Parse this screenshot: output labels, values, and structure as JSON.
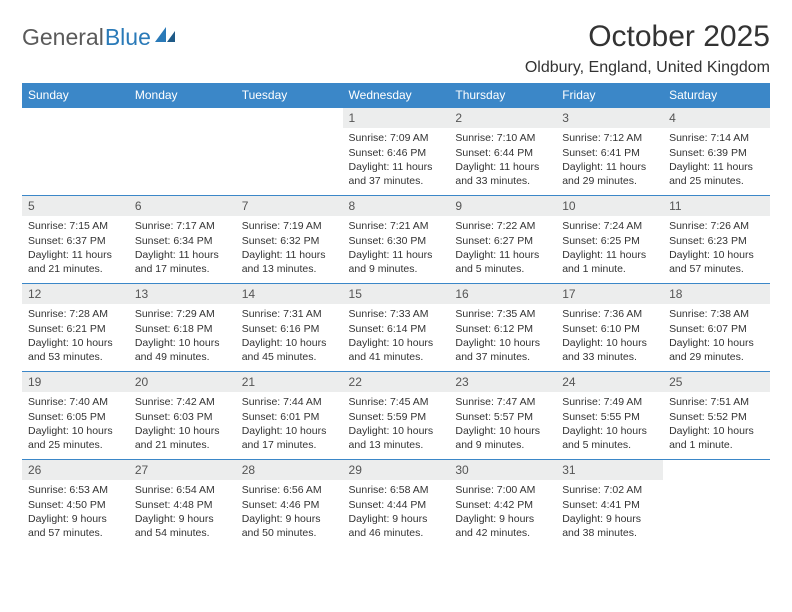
{
  "colors": {
    "header_bg": "#3b87c8",
    "header_text": "#ffffff",
    "daynum_bg": "#eceded",
    "daynum_text": "#555555",
    "body_text": "#333333",
    "week_border": "#3b87c8",
    "logo_gray": "#5a5a5a",
    "logo_blue": "#2a7ab8",
    "page_bg": "#ffffff"
  },
  "typography": {
    "month_title_fontsize": 30,
    "location_fontsize": 16,
    "weekday_fontsize": 12,
    "daynum_fontsize": 12,
    "details_fontsize": 10.5,
    "logo_fontsize": 23,
    "font_family": "Arial, Helvetica, sans-serif"
  },
  "logo": {
    "part1": "General",
    "part2": "Blue"
  },
  "title": "October 2025",
  "location": "Oldbury, England, United Kingdom",
  "weekdays": [
    "Sunday",
    "Monday",
    "Tuesday",
    "Wednesday",
    "Thursday",
    "Friday",
    "Saturday"
  ],
  "weeks": [
    [
      {
        "empty": true
      },
      {
        "empty": true
      },
      {
        "empty": true
      },
      {
        "n": "1",
        "sr": "7:09 AM",
        "ss": "6:46 PM",
        "dl": "11 hours and 37 minutes."
      },
      {
        "n": "2",
        "sr": "7:10 AM",
        "ss": "6:44 PM",
        "dl": "11 hours and 33 minutes."
      },
      {
        "n": "3",
        "sr": "7:12 AM",
        "ss": "6:41 PM",
        "dl": "11 hours and 29 minutes."
      },
      {
        "n": "4",
        "sr": "7:14 AM",
        "ss": "6:39 PM",
        "dl": "11 hours and 25 minutes."
      }
    ],
    [
      {
        "n": "5",
        "sr": "7:15 AM",
        "ss": "6:37 PM",
        "dl": "11 hours and 21 minutes."
      },
      {
        "n": "6",
        "sr": "7:17 AM",
        "ss": "6:34 PM",
        "dl": "11 hours and 17 minutes."
      },
      {
        "n": "7",
        "sr": "7:19 AM",
        "ss": "6:32 PM",
        "dl": "11 hours and 13 minutes."
      },
      {
        "n": "8",
        "sr": "7:21 AM",
        "ss": "6:30 PM",
        "dl": "11 hours and 9 minutes."
      },
      {
        "n": "9",
        "sr": "7:22 AM",
        "ss": "6:27 PM",
        "dl": "11 hours and 5 minutes."
      },
      {
        "n": "10",
        "sr": "7:24 AM",
        "ss": "6:25 PM",
        "dl": "11 hours and 1 minute."
      },
      {
        "n": "11",
        "sr": "7:26 AM",
        "ss": "6:23 PM",
        "dl": "10 hours and 57 minutes."
      }
    ],
    [
      {
        "n": "12",
        "sr": "7:28 AM",
        "ss": "6:21 PM",
        "dl": "10 hours and 53 minutes."
      },
      {
        "n": "13",
        "sr": "7:29 AM",
        "ss": "6:18 PM",
        "dl": "10 hours and 49 minutes."
      },
      {
        "n": "14",
        "sr": "7:31 AM",
        "ss": "6:16 PM",
        "dl": "10 hours and 45 minutes."
      },
      {
        "n": "15",
        "sr": "7:33 AM",
        "ss": "6:14 PM",
        "dl": "10 hours and 41 minutes."
      },
      {
        "n": "16",
        "sr": "7:35 AM",
        "ss": "6:12 PM",
        "dl": "10 hours and 37 minutes."
      },
      {
        "n": "17",
        "sr": "7:36 AM",
        "ss": "6:10 PM",
        "dl": "10 hours and 33 minutes."
      },
      {
        "n": "18",
        "sr": "7:38 AM",
        "ss": "6:07 PM",
        "dl": "10 hours and 29 minutes."
      }
    ],
    [
      {
        "n": "19",
        "sr": "7:40 AM",
        "ss": "6:05 PM",
        "dl": "10 hours and 25 minutes."
      },
      {
        "n": "20",
        "sr": "7:42 AM",
        "ss": "6:03 PM",
        "dl": "10 hours and 21 minutes."
      },
      {
        "n": "21",
        "sr": "7:44 AM",
        "ss": "6:01 PM",
        "dl": "10 hours and 17 minutes."
      },
      {
        "n": "22",
        "sr": "7:45 AM",
        "ss": "5:59 PM",
        "dl": "10 hours and 13 minutes."
      },
      {
        "n": "23",
        "sr": "7:47 AM",
        "ss": "5:57 PM",
        "dl": "10 hours and 9 minutes."
      },
      {
        "n": "24",
        "sr": "7:49 AM",
        "ss": "5:55 PM",
        "dl": "10 hours and 5 minutes."
      },
      {
        "n": "25",
        "sr": "7:51 AM",
        "ss": "5:52 PM",
        "dl": "10 hours and 1 minute."
      }
    ],
    [
      {
        "n": "26",
        "sr": "6:53 AM",
        "ss": "4:50 PM",
        "dl": "9 hours and 57 minutes."
      },
      {
        "n": "27",
        "sr": "6:54 AM",
        "ss": "4:48 PM",
        "dl": "9 hours and 54 minutes."
      },
      {
        "n": "28",
        "sr": "6:56 AM",
        "ss": "4:46 PM",
        "dl": "9 hours and 50 minutes."
      },
      {
        "n": "29",
        "sr": "6:58 AM",
        "ss": "4:44 PM",
        "dl": "9 hours and 46 minutes."
      },
      {
        "n": "30",
        "sr": "7:00 AM",
        "ss": "4:42 PM",
        "dl": "9 hours and 42 minutes."
      },
      {
        "n": "31",
        "sr": "7:02 AM",
        "ss": "4:41 PM",
        "dl": "9 hours and 38 minutes."
      },
      {
        "empty": true
      }
    ]
  ],
  "labels": {
    "sunrise": "Sunrise: ",
    "sunset": "Sunset: ",
    "daylight": "Daylight: "
  }
}
